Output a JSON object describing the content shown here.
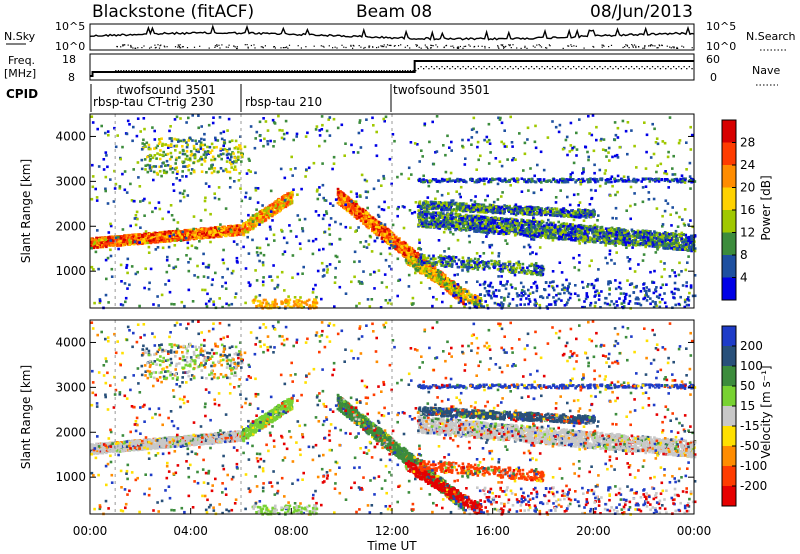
{
  "header": {
    "station": "Blackstone (fitACF)",
    "beam": "Beam 08",
    "date": "08/Jun/2013"
  },
  "status_panel": {
    "nsky_label": "N.Sky",
    "nsearch_label": "N.Search",
    "nsky_ticks": [
      "10^5",
      "10^0"
    ],
    "nsearch_ticks": [
      "10^5",
      "10^0"
    ],
    "freq_label_line1": "Freq.",
    "freq_label_line2": "[MHz]",
    "freq_ticks": [
      "18",
      "8"
    ],
    "nave_label": "Nave",
    "nave_ticks": [
      "60",
      "0"
    ],
    "cpid_label": "CPID",
    "modes": [
      {
        "name": "twofsound 3501",
        "start": 1.0
      },
      {
        "name": "rbsp-tau CT-trig 230",
        "start": 0.0
      },
      {
        "name": "rbsp-tau 210",
        "start": 6.0
      },
      {
        "name": "twofsound 3501",
        "start": 12.0
      }
    ]
  },
  "chart_data": [
    {
      "type": "heatmap",
      "panel": "power",
      "ylabel": "Slant Range [km]",
      "xlabel": "",
      "xlim": [
        0,
        24
      ],
      "ylim": [
        180,
        4500
      ],
      "y_ticks": [
        1000,
        2000,
        3000,
        4000
      ],
      "colorbar": {
        "label": "Power [dB]",
        "ticks": [
          "28",
          "24",
          "20",
          "16",
          "12",
          "8",
          "4"
        ],
        "colors": [
          "#d70000",
          "#ff3c00",
          "#ff8c00",
          "#ffd200",
          "#a0c800",
          "#3c8c3c",
          "#1e50a0",
          "#0000e6"
        ]
      },
      "features": [
        {
          "desc": "echo band",
          "t_start": 0.0,
          "t_end": 6.0,
          "range_start": 1550,
          "range_end": 2050,
          "value": 22
        },
        {
          "desc": "echo band",
          "t_start": 6.0,
          "t_end": 7.8,
          "range_start": 1900,
          "range_end": 2700,
          "value": 18
        },
        {
          "desc": "echo band",
          "t_start": 9.7,
          "t_end": 14.8,
          "range_start": 2600,
          "range_end": 500,
          "value": 20
        },
        {
          "desc": "echo band",
          "t_start": 13.0,
          "t_end": 24.0,
          "range_start": 2050,
          "range_end": 1700,
          "value": 12
        }
      ]
    },
    {
      "type": "heatmap",
      "panel": "velocity",
      "ylabel": "Slant Range [km]",
      "xlabel": "Time UT",
      "xlim": [
        0,
        24
      ],
      "ylim": [
        180,
        4500
      ],
      "y_ticks": [
        1000,
        2000,
        3000,
        4000
      ],
      "x_ticks": [
        "00:00",
        "04:00",
        "08:00",
        "12:00",
        "16:00",
        "20:00",
        "00:00"
      ],
      "colorbar": {
        "label": "Velocity [m s⁻¹]",
        "ticks": [
          "200",
          "100",
          "50",
          "15",
          "-15",
          "-50",
          "-100",
          "-200"
        ],
        "colors": [
          "#1e3cc8",
          "#28507a",
          "#3c8c3c",
          "#78d232",
          "#c8c8c8",
          "#ffe000",
          "#ff8c00",
          "#ff3c00",
          "#e60000"
        ]
      }
    }
  ]
}
